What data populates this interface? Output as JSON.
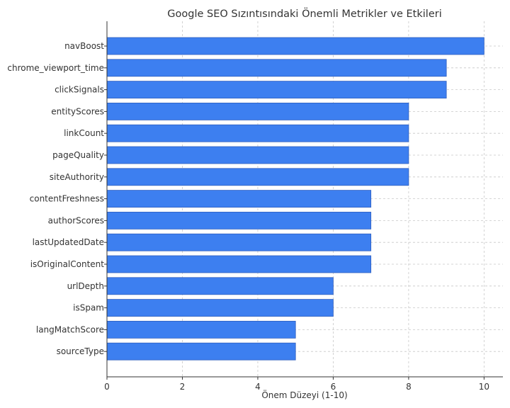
{
  "chart_data": {
    "type": "bar",
    "orientation": "horizontal",
    "title": "Google SEO Sızıntısındaki Önemli Metrikler ve Etkileri",
    "xlabel": "Önem Düzeyi (1-10)",
    "ylabel": "",
    "xlim": [
      0,
      10.5
    ],
    "xticks": [
      0,
      2,
      4,
      6,
      8,
      10
    ],
    "grid": true,
    "bar_color": "#3d7ff0",
    "categories": [
      "navBoost",
      "chrome_viewport_time",
      "clickSignals",
      "entityScores",
      "linkCount",
      "pageQuality",
      "siteAuthority",
      "contentFreshness",
      "authorScores",
      "lastUpdatedDate",
      "isOriginalContent",
      "urlDepth",
      "isSpam",
      "langMatchScore",
      "sourceType"
    ],
    "values": [
      10,
      9,
      9,
      8,
      8,
      8,
      8,
      7,
      7,
      7,
      7,
      6,
      6,
      5,
      5
    ]
  }
}
